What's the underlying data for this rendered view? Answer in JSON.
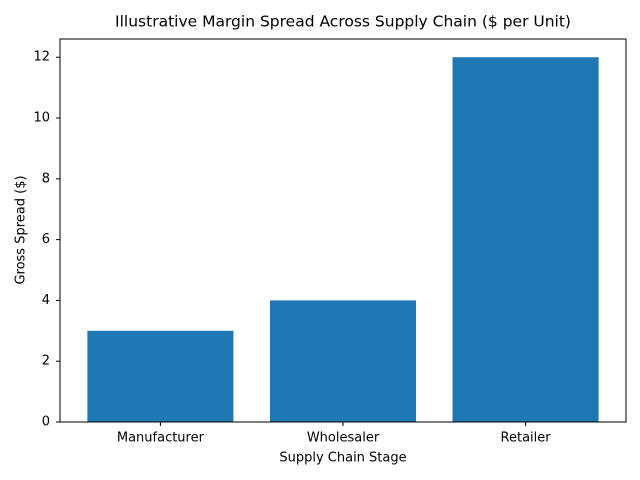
{
  "chart_data": {
    "type": "bar",
    "title": "Illustrative Margin Spread Across Supply Chain ($ per Unit)",
    "x_label": "Supply Chain Stage",
    "y_label": "Gross Spread ($)",
    "categories": [
      "Manufacturer",
      "Wholesaler",
      "Retailer"
    ],
    "values": [
      3,
      4,
      12
    ],
    "color": "#1f77b4",
    "ylim": [
      0,
      12.6
    ],
    "yticks": [
      0,
      2,
      4,
      6,
      8,
      10,
      12
    ],
    "grid": false
  }
}
